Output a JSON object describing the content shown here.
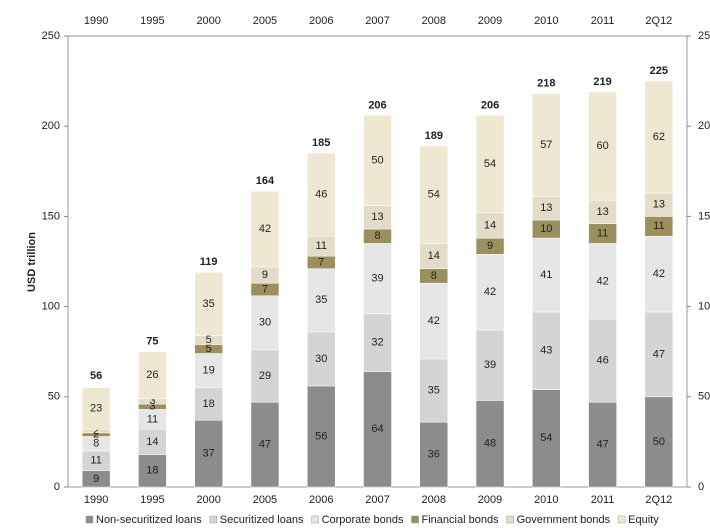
{
  "chart_data": {
    "type": "stacked-bar",
    "y_label": "USD trillion",
    "categories": [
      "1990",
      "1995",
      "2000",
      "2005",
      "2006",
      "2007",
      "2008",
      "2009",
      "2010",
      "2011",
      "2Q12"
    ],
    "series": [
      {
        "name": "Non-securitized loans",
        "color": "#8c8c8c",
        "values": [
          9,
          18,
          37,
          47,
          56,
          64,
          36,
          48,
          54,
          47,
          50
        ]
      },
      {
        "name": "Securitized loans",
        "color": "#d4d4d4",
        "values": [
          11,
          14,
          18,
          29,
          30,
          32,
          35,
          39,
          43,
          46,
          47
        ]
      },
      {
        "name": "Corporate bonds",
        "color": "#e6e6e6",
        "values": [
          8,
          11,
          19,
          30,
          35,
          39,
          42,
          42,
          41,
          42,
          42
        ]
      },
      {
        "name": "Financial bonds",
        "color": "#9b8f5e",
        "values": [
          2,
          3,
          5,
          7,
          7,
          8,
          8,
          9,
          10,
          11,
          11
        ]
      },
      {
        "name": "Government bonds",
        "color": "#e2dcc8",
        "values": [
          2,
          3,
          5,
          9,
          11,
          13,
          14,
          14,
          13,
          13,
          13
        ]
      },
      {
        "name": "Equity",
        "color": "#eee8d2",
        "values": [
          23,
          26,
          35,
          42,
          46,
          50,
          54,
          54,
          57,
          60,
          62
        ]
      }
    ],
    "totals": [
      56,
      75,
      119,
      164,
      185,
      206,
      189,
      206,
      218,
      219,
      225
    ],
    "ylim": [
      0,
      250
    ],
    "yticks": [
      0,
      50,
      100,
      150,
      200,
      250
    ],
    "grid": false,
    "legend": "bottom"
  }
}
